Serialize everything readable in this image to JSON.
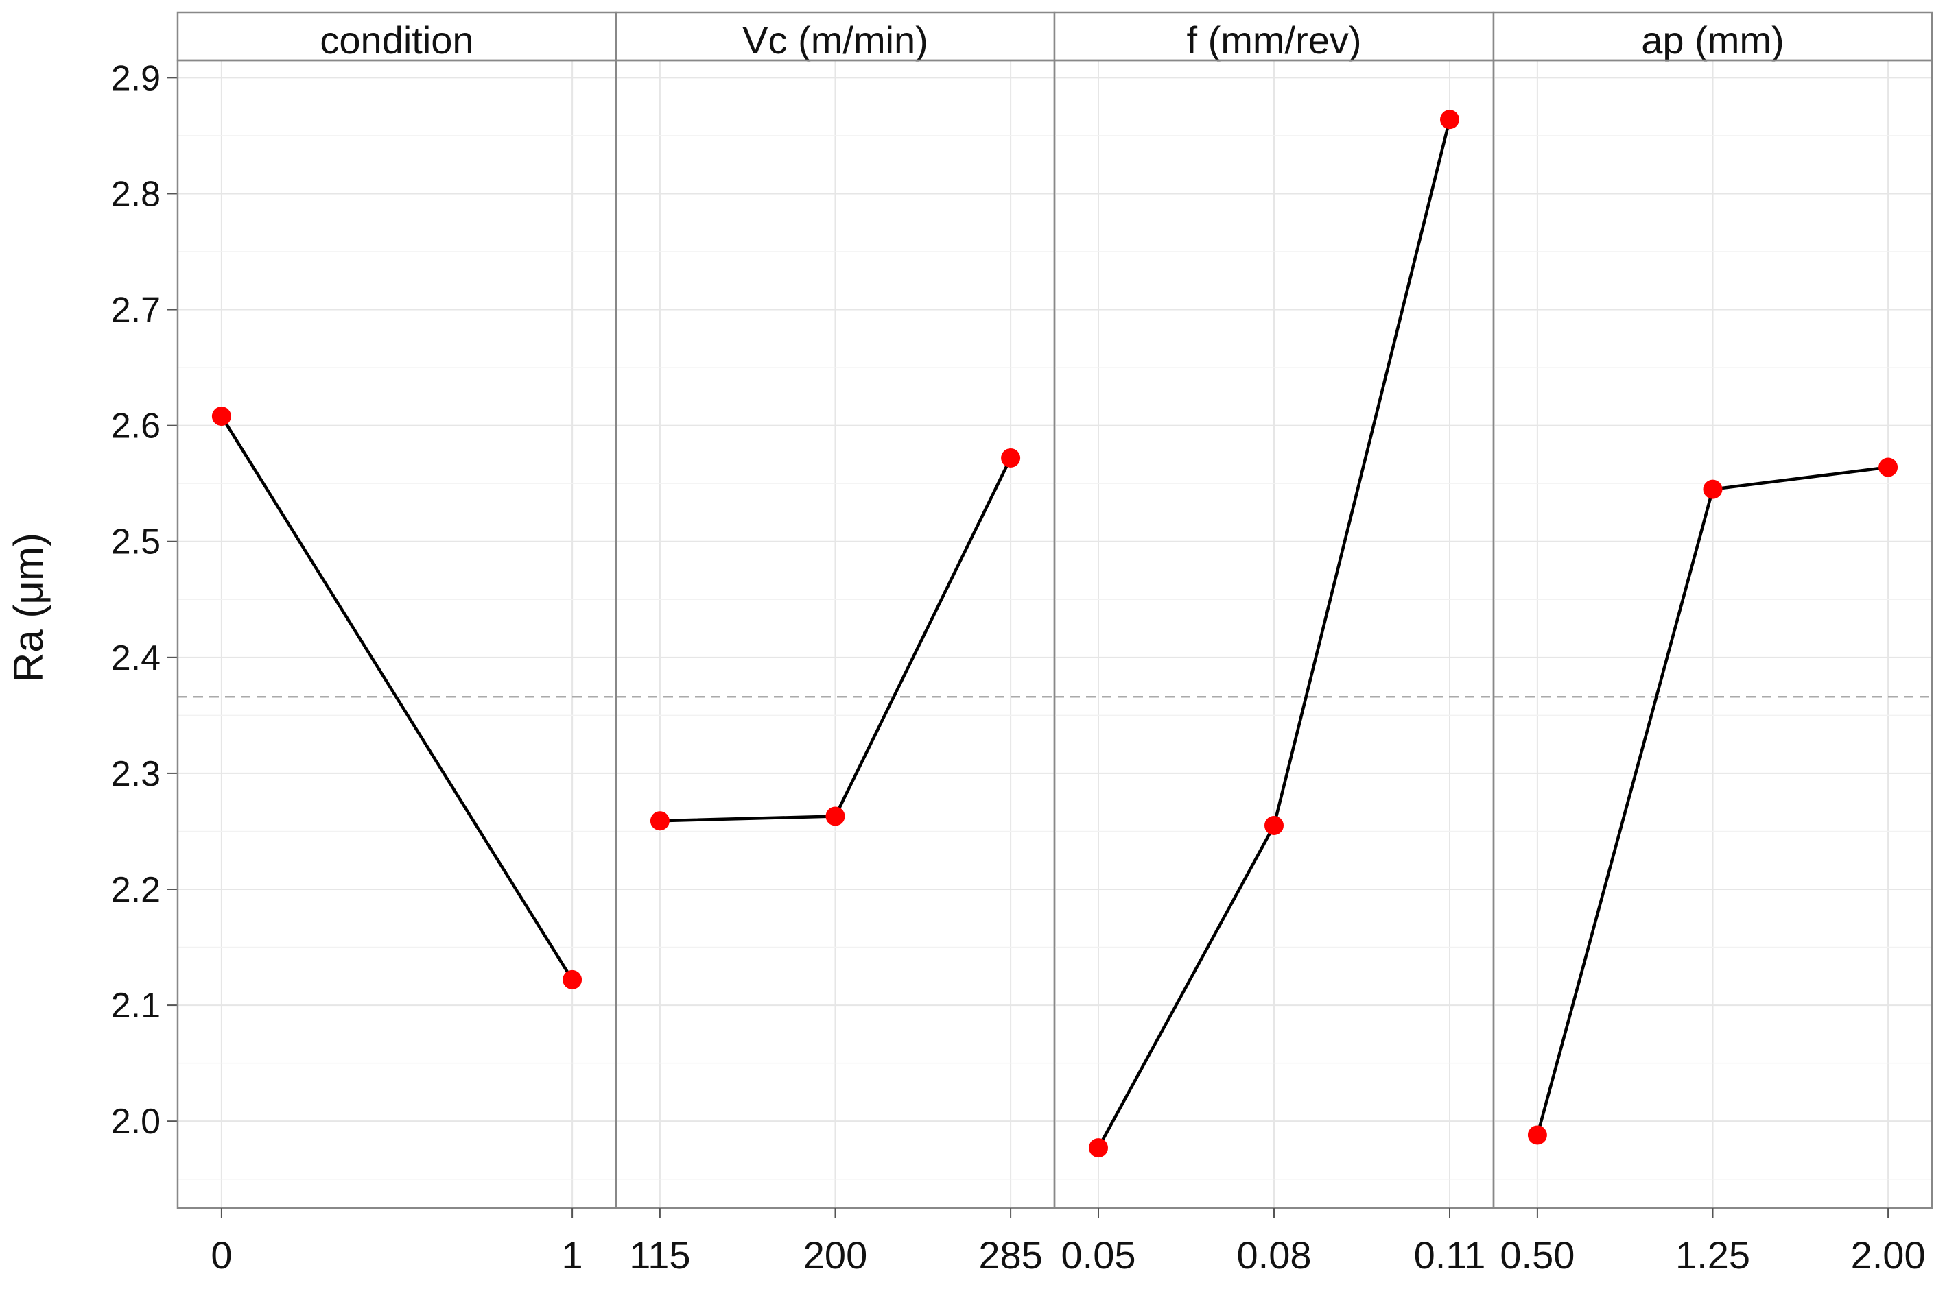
{
  "chart_data": {
    "type": "line",
    "facet_layout": "four panels side by side sharing the y axis",
    "ylabel": "Ra (μm)",
    "ylim": [
      1.925,
      2.915
    ],
    "y_ticks": [
      2.0,
      2.1,
      2.2,
      2.3,
      2.4,
      2.5,
      2.6,
      2.7,
      2.8,
      2.9
    ],
    "y_tick_labels": [
      "2.0",
      "2.1",
      "2.2",
      "2.3",
      "2.4",
      "2.5",
      "2.6",
      "2.7",
      "2.8",
      "2.9"
    ],
    "reference_line": {
      "y": 2.366,
      "style": "dashed"
    },
    "grid": true,
    "colors": {
      "points": "#ff0000",
      "line": "#000000",
      "reference": "#aaaaaa",
      "grid": "#e6e6e6",
      "frame": "#888888"
    },
    "panels": [
      {
        "label": "condition",
        "categories": [
          "0",
          "1"
        ],
        "values": [
          2.608,
          2.122
        ]
      },
      {
        "label": "Vc (m/min)",
        "categories": [
          "115",
          "200",
          "285"
        ],
        "values": [
          2.259,
          2.263,
          2.572
        ]
      },
      {
        "label": "f (mm/rev)",
        "categories": [
          "0.05",
          "0.08",
          "0.11"
        ],
        "values": [
          1.977,
          2.255,
          2.864
        ]
      },
      {
        "label": "ap (mm)",
        "categories": [
          "0.50",
          "1.25",
          "2.00"
        ],
        "values": [
          1.988,
          2.545,
          2.564
        ]
      }
    ]
  }
}
